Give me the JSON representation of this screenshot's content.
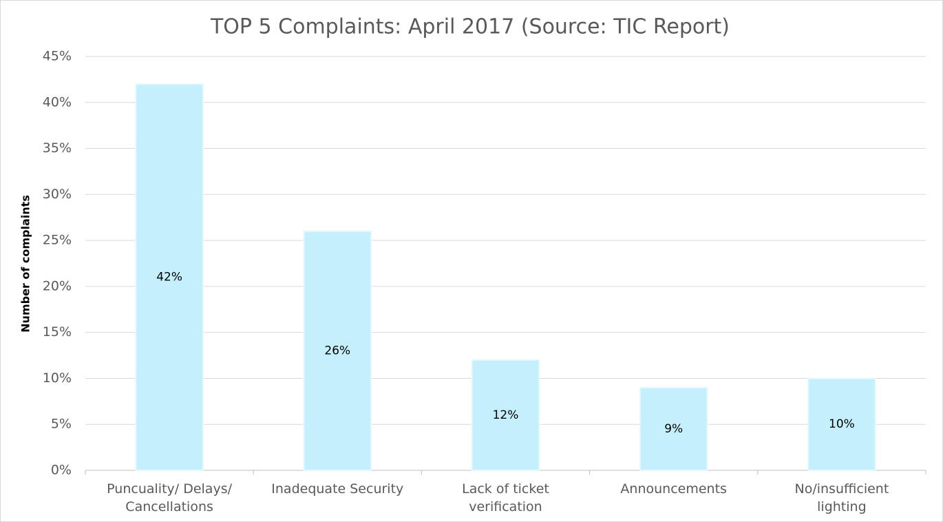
{
  "chart_data": {
    "type": "bar",
    "title": "TOP 5 Complaints: April 2017 (Source: TIC Report)",
    "y_label": "Number of complaints",
    "categories": [
      "Puncuality/ Delays/\nCancellations",
      "Inadequate Security",
      "Lack of ticket\nverification",
      "Announcements",
      "No/insufficient\nlighting"
    ],
    "values": [
      42,
      26,
      12,
      9,
      10
    ],
    "value_labels": [
      "42%",
      "26%",
      "12%",
      "9%",
      "10%"
    ],
    "color": "#c6effd",
    "ylim": [
      0,
      45
    ],
    "yticks": [
      {
        "value": 0,
        "label": "0%"
      },
      {
        "value": 5,
        "label": "5%"
      },
      {
        "value": 10,
        "label": "10%"
      },
      {
        "value": 15,
        "label": "15%"
      },
      {
        "value": 20,
        "label": "20%"
      },
      {
        "value": 25,
        "label": "25%"
      },
      {
        "value": 30,
        "label": "30%"
      },
      {
        "value": 35,
        "label": "35%"
      },
      {
        "value": 40,
        "label": "40%"
      },
      {
        "value": 45,
        "label": "45%"
      }
    ],
    "grid": true
  }
}
